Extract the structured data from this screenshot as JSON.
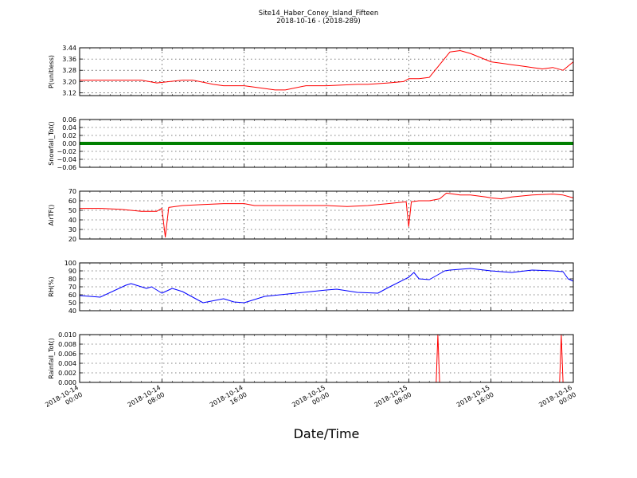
{
  "chart_data": {
    "type": "line",
    "title": "Site14_Haber_Coney_Island_Fifteen",
    "subtitle": "2018-10-16 - (2018-289)",
    "xlabel": "Date/Time",
    "x_range": [
      "2018-10-14 00:00",
      "2018-10-16 00:00"
    ],
    "x_ticks": [
      "2018-10-14 00:00",
      "2018-10-14 08:00",
      "2018-10-14 16:00",
      "2018-10-15 00:00",
      "2018-10-15 08:00",
      "2018-10-15 16:00",
      "2018-10-16 00:00"
    ],
    "x_tick_labels": [
      [
        "2018-10-14",
        "00:00"
      ],
      [
        "2018-10-14",
        "08:00"
      ],
      [
        "2018-10-14",
        "16:00"
      ],
      [
        "2018-10-15",
        "00:00"
      ],
      [
        "2018-10-15",
        "08:00"
      ],
      [
        "2018-10-15",
        "16:00"
      ],
      [
        "2018-10-16",
        "00:00"
      ]
    ],
    "grid": true,
    "panels": [
      {
        "ylabel": "P(unitless)",
        "ylim": [
          3.1,
          3.44
        ],
        "yticks": [
          "3.12",
          "3.20",
          "3.28",
          "3.36",
          "3.44"
        ],
        "series": [
          {
            "color": "#ff0000",
            "x": [
              "2018-10-14 00:00",
              "2018-10-14 02:00",
              "2018-10-14 04:00",
              "2018-10-14 06:00",
              "2018-10-14 07:30",
              "2018-10-14 10:00",
              "2018-10-14 11:00",
              "2018-10-14 13:00",
              "2018-10-14 14:00",
              "2018-10-14 16:00",
              "2018-10-14 17:00",
              "2018-10-14 19:00",
              "2018-10-14 20:00",
              "2018-10-14 22:00",
              "2018-10-15 00:00",
              "2018-10-15 03:00",
              "2018-10-15 04:00",
              "2018-10-15 06:00",
              "2018-10-15 07:30",
              "2018-10-15 08:00",
              "2018-10-15 09:00",
              "2018-10-15 10:00",
              "2018-10-15 11:00",
              "2018-10-15 12:00",
              "2018-10-15 13:00",
              "2018-10-15 14:00",
              "2018-10-15 16:00",
              "2018-10-15 17:00",
              "2018-10-15 18:00",
              "2018-10-15 19:00",
              "2018-10-15 20:00",
              "2018-10-15 21:00",
              "2018-10-15 22:00",
              "2018-10-15 23:00",
              "2018-10-16 00:00"
            ],
            "y": [
              3.21,
              3.21,
              3.21,
              3.21,
              3.19,
              3.21,
              3.21,
              3.18,
              3.17,
              3.17,
              3.16,
              3.14,
              3.14,
              3.17,
              3.17,
              3.18,
              3.18,
              3.19,
              3.2,
              3.22,
              3.22,
              3.23,
              3.32,
              3.41,
              3.42,
              3.4,
              3.34,
              3.33,
              3.32,
              3.31,
              3.3,
              3.29,
              3.3,
              3.28,
              3.34
            ]
          }
        ]
      },
      {
        "ylabel": "Snowfall_Tot()",
        "ylim": [
          -0.06,
          0.06
        ],
        "yticks": [
          "−0.06",
          "−0.04",
          "−0.02",
          "0.00",
          "0.02",
          "0.04",
          "0.06"
        ],
        "series": [
          {
            "color": "#008000",
            "x": [
              "2018-10-14 00:00",
              "2018-10-16 00:00"
            ],
            "y": [
              0,
              0
            ]
          }
        ]
      },
      {
        "ylabel": "AirTF()",
        "ylim": [
          20,
          70
        ],
        "yticks": [
          "20",
          "30",
          "40",
          "50",
          "60",
          "70"
        ],
        "series": [
          {
            "color": "#ff0000",
            "x": [
              "2018-10-14 00:00",
              "2018-10-14 01:30",
              "2018-10-14 02:00",
              "2018-10-14 04:00",
              "2018-10-14 06:00",
              "2018-10-14 07:30",
              "2018-10-14 08:00",
              "2018-10-14 08:20",
              "2018-10-14 08:40",
              "2018-10-14 10:00",
              "2018-10-14 12:00",
              "2018-10-14 14:00",
              "2018-10-14 16:00",
              "2018-10-14 17:00",
              "2018-10-14 19:00",
              "2018-10-15 00:00",
              "2018-10-15 02:00",
              "2018-10-15 04:00",
              "2018-10-15 06:00",
              "2018-10-15 07:45",
              "2018-10-15 08:00",
              "2018-10-15 08:15",
              "2018-10-15 09:00",
              "2018-10-15 10:00",
              "2018-10-15 11:00",
              "2018-10-15 11:40",
              "2018-10-15 13:00",
              "2018-10-15 14:00",
              "2018-10-15 15:30",
              "2018-10-15 16:00",
              "2018-10-15 17:00",
              "2018-10-15 18:00",
              "2018-10-15 20:00",
              "2018-10-15 22:00",
              "2018-10-15 23:00",
              "2018-10-16 00:00"
            ],
            "y": [
              52,
              52,
              52,
              51,
              49,
              49,
              52,
              22,
              53,
              55,
              56,
              57,
              57,
              55,
              55,
              55,
              54,
              55,
              57,
              59,
              33,
              59,
              60,
              60,
              62,
              68,
              66,
              66,
              64,
              63,
              62,
              64,
              66,
              67,
              66,
              63
            ]
          }
        ]
      },
      {
        "ylabel": "RH(%)",
        "ylim": [
          40,
          100
        ],
        "yticks": [
          "40",
          "50",
          "60",
          "70",
          "80",
          "90",
          "100"
        ],
        "series": [
          {
            "color": "#0000ff",
            "x": [
              "2018-10-14 00:00",
              "2018-10-14 01:00",
              "2018-10-14 02:00",
              "2018-10-14 04:30",
              "2018-10-14 05:00",
              "2018-10-14 06:30",
              "2018-10-14 07:00",
              "2018-10-14 08:00",
              "2018-10-14 09:00",
              "2018-10-14 10:00",
              "2018-10-14 12:00",
              "2018-10-14 14:00",
              "2018-10-14 15:00",
              "2018-10-14 16:00",
              "2018-10-14 18:00",
              "2018-10-14 21:00",
              "2018-10-15 00:00",
              "2018-10-15 01:00",
              "2018-10-15 03:00",
              "2018-10-15 05:00",
              "2018-10-15 06:00",
              "2018-10-15 08:00",
              "2018-10-15 08:30",
              "2018-10-15 09:00",
              "2018-10-15 10:00",
              "2018-10-15 11:30",
              "2018-10-15 12:00",
              "2018-10-15 14:00",
              "2018-10-15 16:00",
              "2018-10-15 18:00",
              "2018-10-15 20:00",
              "2018-10-15 22:00",
              "2018-10-15 23:00",
              "2018-10-15 23:30",
              "2018-10-16 00:00"
            ],
            "y": [
              59,
              58,
              57,
              72,
              74,
              68,
              70,
              62,
              68,
              64,
              50,
              55,
              51,
              50,
              58,
              62,
              66,
              67,
              63,
              62,
              69,
              82,
              88,
              80,
              79,
              90,
              91,
              93,
              90,
              88,
              91,
              90,
              89,
              80,
              77
            ]
          }
        ]
      },
      {
        "ylabel": "Rainfall_Tot()",
        "ylim": [
          0,
          0.01
        ],
        "yticks": [
          "0.000",
          "0.002",
          "0.004",
          "0.006",
          "0.008",
          "0.010"
        ],
        "series": [
          {
            "color": "#ff0000",
            "x": [
              "2018-10-14 00:00",
              "2018-10-15 10:40",
              "2018-10-15 10:50",
              "2018-10-15 11:00",
              "2018-10-15 22:40",
              "2018-10-15 22:50",
              "2018-10-15 23:00",
              "2018-10-16 00:00"
            ],
            "y": [
              0,
              0,
              0.01,
              0,
              0,
              0.01,
              0,
              0
            ]
          }
        ]
      }
    ]
  }
}
